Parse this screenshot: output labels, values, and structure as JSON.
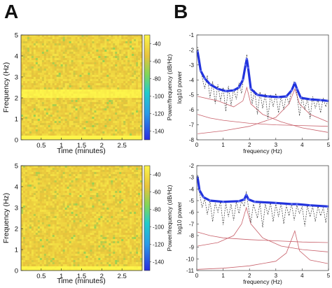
{
  "panel_labels": {
    "left": "A",
    "right": "B"
  },
  "chart_data": [
    {
      "type": "heatmap",
      "panel": "A-top",
      "xlabel": "Time (minutes)",
      "ylabel": "Frequency (Hz)",
      "xticks": [
        "0.5",
        "1",
        "1.5",
        "2",
        "2.5"
      ],
      "xtick_values": [
        0.5,
        1,
        1.5,
        2,
        2.5
      ],
      "xlim": [
        0,
        3
      ],
      "yticks": [
        "0",
        "1",
        "2",
        "3",
        "4",
        "5"
      ],
      "ylim": [
        0,
        5
      ],
      "colorbar_label": "Power/frequency (dB/Hz)",
      "colorbar_ticks": [
        "-40",
        "-60",
        "-80",
        "-100",
        "-120",
        "-140"
      ],
      "colorbar_values": [
        -40,
        -60,
        -80,
        -100,
        -120,
        -140
      ],
      "colorbar_range": [
        -150,
        -30
      ],
      "features": {
        "band_hz": 2.2,
        "band_db": -32,
        "base_db": -48,
        "low_freq_db": -28
      }
    },
    {
      "type": "heatmap",
      "panel": "A-bottom",
      "xlabel": "Time (minutes)",
      "ylabel": "Frequency (Hz)",
      "xticks": [
        "0.5",
        "1",
        "1.5",
        "2",
        "2.5"
      ],
      "xtick_values": [
        0.5,
        1,
        1.5,
        2,
        2.5
      ],
      "xlim": [
        0,
        3
      ],
      "yticks": [
        "0",
        "1",
        "2",
        "3",
        "4",
        "5"
      ],
      "ylim": [
        0,
        5
      ],
      "colorbar_label": "Power/frequency (dB/Hz)",
      "colorbar_ticks": [
        "-40",
        "-60",
        "-80",
        "-100",
        "-120",
        "-140"
      ],
      "colorbar_values": [
        -40,
        -60,
        -80,
        -100,
        -120,
        -140
      ],
      "colorbar_range": [
        -150,
        -30
      ],
      "features": {
        "band_hz": 0,
        "band_db": -48,
        "base_db": -48,
        "low_freq_db": -30
      }
    },
    {
      "type": "line",
      "panel": "B-top",
      "xlabel": "frequency (Hz)",
      "ylabel": "log10 power",
      "xlim": [
        0,
        5
      ],
      "ylim": [
        -8,
        -1
      ],
      "xticks": [
        "0",
        "1",
        "2",
        "3",
        "4",
        "5"
      ],
      "xtick_values": [
        0,
        1,
        2,
        3,
        4,
        5
      ],
      "yticks": [
        "-1",
        "-2",
        "-3",
        "-4",
        "-5",
        "-6",
        "-7",
        "-8"
      ],
      "ytick_values": [
        -1,
        -2,
        -3,
        -4,
        -5,
        -6,
        -7,
        -8
      ],
      "grid": false,
      "series": [
        {
          "style": "fit",
          "color": "#2233dd",
          "points": [
            [
              0.03,
              -2.1
            ],
            [
              0.15,
              -3.4
            ],
            [
              0.3,
              -3.9
            ],
            [
              0.5,
              -4.3
            ],
            [
              0.8,
              -4.6
            ],
            [
              1.1,
              -4.75
            ],
            [
              1.4,
              -4.7
            ],
            [
              1.6,
              -4.5
            ],
            [
              1.75,
              -4.0
            ],
            [
              1.85,
              -3.0
            ],
            [
              1.9,
              -2.6
            ],
            [
              1.95,
              -3.2
            ],
            [
              2.05,
              -4.6
            ],
            [
              2.3,
              -5.0
            ],
            [
              2.7,
              -5.1
            ],
            [
              3.1,
              -5.15
            ],
            [
              3.4,
              -5.1
            ],
            [
              3.6,
              -4.7
            ],
            [
              3.72,
              -4.2
            ],
            [
              3.8,
              -4.6
            ],
            [
              3.95,
              -5.2
            ],
            [
              4.3,
              -5.3
            ],
            [
              4.7,
              -5.35
            ],
            [
              4.97,
              -5.4
            ]
          ]
        },
        {
          "style": "data",
          "color": "#333333",
          "points": [
            [
              0.03,
              -1.8
            ],
            [
              0.1,
              -2.9
            ],
            [
              0.2,
              -3.8
            ],
            [
              0.3,
              -4.6
            ],
            [
              0.4,
              -3.7
            ],
            [
              0.5,
              -5.2
            ],
            [
              0.6,
              -4.1
            ],
            [
              0.7,
              -5.6
            ],
            [
              0.8,
              -4.3
            ],
            [
              0.9,
              -5.4
            ],
            [
              1.0,
              -4.5
            ],
            [
              1.1,
              -6.1
            ],
            [
              1.2,
              -4.4
            ],
            [
              1.3,
              -5.7
            ],
            [
              1.4,
              -4.6
            ],
            [
              1.5,
              -5.3
            ],
            [
              1.6,
              -4.2
            ],
            [
              1.7,
              -4.9
            ],
            [
              1.8,
              -3.4
            ],
            [
              1.9,
              -2.3
            ],
            [
              2.0,
              -3.9
            ],
            [
              2.1,
              -5.6
            ],
            [
              2.2,
              -4.7
            ],
            [
              2.3,
              -6.3
            ],
            [
              2.4,
              -4.8
            ],
            [
              2.5,
              -5.9
            ],
            [
              2.6,
              -4.9
            ],
            [
              2.7,
              -6.6
            ],
            [
              2.8,
              -5.0
            ],
            [
              2.9,
              -5.8
            ],
            [
              3.0,
              -4.9
            ],
            [
              3.1,
              -6.2
            ],
            [
              3.2,
              -5.1
            ],
            [
              3.3,
              -6.0
            ],
            [
              3.4,
              -5.0
            ],
            [
              3.5,
              -5.6
            ],
            [
              3.6,
              -4.6
            ],
            [
              3.7,
              -4.1
            ],
            [
              3.8,
              -4.9
            ],
            [
              3.9,
              -6.4
            ],
            [
              4.0,
              -5.1
            ],
            [
              4.1,
              -6.0
            ],
            [
              4.2,
              -5.2
            ],
            [
              4.3,
              -6.6
            ],
            [
              4.4,
              -5.1
            ],
            [
              4.5,
              -5.9
            ],
            [
              4.6,
              -5.3
            ],
            [
              4.7,
              -6.2
            ],
            [
              4.8,
              -5.2
            ],
            [
              4.9,
              -5.8
            ],
            [
              4.97,
              -5.4
            ]
          ]
        },
        {
          "style": "component",
          "color": "#c8606a",
          "points": [
            [
              0.03,
              -6.3
            ],
            [
              0.5,
              -6.55
            ],
            [
              1.0,
              -6.7
            ],
            [
              2.0,
              -6.9
            ],
            [
              3.0,
              -7.0
            ],
            [
              4.0,
              -7.05
            ],
            [
              4.97,
              -7.1
            ]
          ]
        },
        {
          "style": "component",
          "color": "#c8606a",
          "points": [
            [
              0.03,
              -5.1
            ],
            [
              0.8,
              -5.4
            ],
            [
              1.4,
              -5.8
            ],
            [
              1.75,
              -5.4
            ],
            [
              1.9,
              -4.5
            ],
            [
              2.05,
              -5.6
            ],
            [
              2.5,
              -6.3
            ],
            [
              3.2,
              -6.8
            ],
            [
              4.0,
              -7.2
            ],
            [
              4.97,
              -7.5
            ]
          ]
        },
        {
          "style": "component",
          "color": "#c8606a",
          "points": [
            [
              0.03,
              -7.6
            ],
            [
              1.0,
              -7.4
            ],
            [
              2.0,
              -7.1
            ],
            [
              3.0,
              -6.5
            ],
            [
              3.5,
              -5.6
            ],
            [
              3.72,
              -4.6
            ],
            [
              3.9,
              -5.6
            ],
            [
              4.3,
              -6.3
            ],
            [
              4.97,
              -6.8
            ]
          ]
        }
      ]
    },
    {
      "type": "line",
      "panel": "B-bottom",
      "xlabel": "frequency (Hz)",
      "ylabel": "log10 power",
      "xlim": [
        0,
        5
      ],
      "ylim": [
        -11,
        -2
      ],
      "xticks": [
        "0",
        "1",
        "2",
        "3",
        "4",
        "5"
      ],
      "xtick_values": [
        0,
        1,
        2,
        3,
        4,
        5
      ],
      "yticks": [
        "-2",
        "-3",
        "-4",
        "-5",
        "-6",
        "-7",
        "-8",
        "-9",
        "-10",
        "-11"
      ],
      "ytick_values": [
        -2,
        -3,
        -4,
        -5,
        -6,
        -7,
        -8,
        -9,
        -10,
        -11
      ],
      "grid": false,
      "series": [
        {
          "style": "fit",
          "color": "#2233dd",
          "points": [
            [
              0.03,
              -3.0
            ],
            [
              0.1,
              -4.1
            ],
            [
              0.25,
              -4.7
            ],
            [
              0.5,
              -5.0
            ],
            [
              1.0,
              -5.1
            ],
            [
              1.6,
              -5.05
            ],
            [
              1.8,
              -4.9
            ],
            [
              1.88,
              -4.5
            ],
            [
              1.96,
              -4.9
            ],
            [
              2.2,
              -5.1
            ],
            [
              3.0,
              -5.2
            ],
            [
              3.6,
              -5.3
            ],
            [
              3.8,
              -5.3
            ],
            [
              4.3,
              -5.4
            ],
            [
              4.97,
              -5.5
            ]
          ]
        },
        {
          "style": "data",
          "color": "#333333",
          "points": [
            [
              0.03,
              -2.8
            ],
            [
              0.1,
              -4.3
            ],
            [
              0.2,
              -5.6
            ],
            [
              0.3,
              -4.8
            ],
            [
              0.4,
              -6.2
            ],
            [
              0.5,
              -5.0
            ],
            [
              0.6,
              -6.8
            ],
            [
              0.7,
              -5.2
            ],
            [
              0.8,
              -6.0
            ],
            [
              0.9,
              -5.1
            ],
            [
              1.0,
              -7.1
            ],
            [
              1.1,
              -5.2
            ],
            [
              1.2,
              -6.4
            ],
            [
              1.3,
              -5.3
            ],
            [
              1.4,
              -6.7
            ],
            [
              1.5,
              -5.1
            ],
            [
              1.6,
              -6.1
            ],
            [
              1.7,
              -5.0
            ],
            [
              1.8,
              -5.5
            ],
            [
              1.88,
              -4.2
            ],
            [
              1.95,
              -5.4
            ],
            [
              2.05,
              -6.9
            ],
            [
              2.15,
              -5.3
            ],
            [
              2.3,
              -6.5
            ],
            [
              2.4,
              -5.2
            ],
            [
              2.5,
              -7.3
            ],
            [
              2.6,
              -5.3
            ],
            [
              2.7,
              -6.2
            ],
            [
              2.8,
              -5.2
            ],
            [
              2.9,
              -6.8
            ],
            [
              3.0,
              -5.3
            ],
            [
              3.1,
              -6.4
            ],
            [
              3.2,
              -5.2
            ],
            [
              3.3,
              -7.0
            ],
            [
              3.4,
              -5.4
            ],
            [
              3.5,
              -6.3
            ],
            [
              3.6,
              -5.3
            ],
            [
              3.7,
              -6.7
            ],
            [
              3.8,
              -5.4
            ],
            [
              3.9,
              -6.1
            ],
            [
              4.0,
              -5.5
            ],
            [
              4.1,
              -7.2
            ],
            [
              4.2,
              -5.4
            ],
            [
              4.3,
              -6.4
            ],
            [
              4.4,
              -5.5
            ],
            [
              4.5,
              -6.8
            ],
            [
              4.6,
              -5.5
            ],
            [
              4.7,
              -6.3
            ],
            [
              4.8,
              -5.6
            ],
            [
              4.9,
              -6.9
            ],
            [
              4.97,
              -5.6
            ]
          ]
        },
        {
          "style": "component",
          "color": "#c8606a",
          "points": [
            [
              0.03,
              -7.7
            ],
            [
              0.5,
              -8.0
            ],
            [
              1.0,
              -8.2
            ],
            [
              2.0,
              -8.35
            ],
            [
              3.0,
              -8.45
            ],
            [
              4.0,
              -8.55
            ],
            [
              4.97,
              -8.6
            ]
          ]
        },
        {
          "style": "component",
          "color": "#c8606a",
          "points": [
            [
              0.03,
              -8.9
            ],
            [
              0.8,
              -8.6
            ],
            [
              1.4,
              -8.0
            ],
            [
              1.7,
              -7.0
            ],
            [
              1.88,
              -5.6
            ],
            [
              2.05,
              -7.0
            ],
            [
              2.5,
              -8.2
            ],
            [
              3.2,
              -8.9
            ],
            [
              4.0,
              -9.2
            ],
            [
              4.97,
              -9.4
            ]
          ]
        },
        {
          "style": "component",
          "color": "#c8606a",
          "points": [
            [
              0.03,
              -10.9
            ],
            [
              1.0,
              -10.8
            ],
            [
              2.0,
              -10.6
            ],
            [
              3.0,
              -10.2
            ],
            [
              3.4,
              -9.5
            ],
            [
              3.72,
              -7.6
            ],
            [
              3.9,
              -9.3
            ],
            [
              4.3,
              -10.1
            ],
            [
              4.97,
              -10.4
            ]
          ]
        }
      ]
    }
  ]
}
